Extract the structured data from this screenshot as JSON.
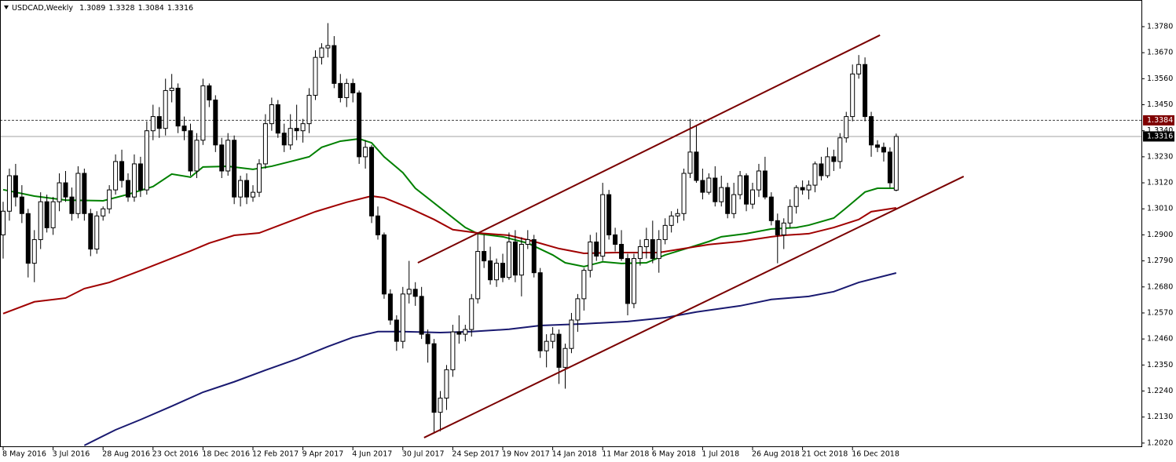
{
  "chart_data": {
    "type": "candlestick",
    "title": "USDCAD,Weekly",
    "categories": [
      "8 May 2016",
      null,
      null,
      null,
      null,
      null,
      null,
      null,
      "3 Jul 2016",
      null,
      null,
      null,
      null,
      null,
      null,
      null,
      "28 Aug 2016",
      null,
      null,
      null,
      null,
      null,
      null,
      null,
      "23 Oct 2016",
      null,
      null,
      null,
      null,
      null,
      null,
      null,
      "18 Dec 2016",
      null,
      null,
      null,
      null,
      null,
      null,
      null,
      "12 Feb 2017",
      null,
      null,
      null,
      null,
      null,
      null,
      null,
      "9 Apr 2017",
      null,
      null,
      null,
      null,
      null,
      null,
      null,
      "4 Jun 2017",
      null,
      null,
      null,
      null,
      null,
      null,
      null,
      "30 Jul 2017",
      null,
      null,
      null,
      null,
      null,
      null,
      null,
      "24 Sep 2017",
      null,
      null,
      null,
      null,
      null,
      null,
      null,
      "19 Nov 2017",
      null,
      null,
      null,
      null,
      null,
      null,
      null,
      "14 Jan 2018",
      null,
      null,
      null,
      null,
      null,
      null,
      null,
      "11 Mar 2018",
      null,
      null,
      null,
      null,
      null,
      null,
      null,
      "6 May 2018",
      null,
      null,
      null,
      null,
      null,
      null,
      null,
      "1 Jul 2018",
      null,
      null,
      null,
      null,
      null,
      null,
      null,
      "26 Aug 2018",
      null,
      null,
      null,
      null,
      null,
      null,
      null,
      "21 Oct 2018",
      null,
      null,
      null,
      null,
      null,
      null,
      null,
      "16 Dec 2018",
      null,
      null,
      null,
      null,
      null,
      null,
      null
    ],
    "open": [
      1.29,
      1.3,
      1.315,
      1.306,
      1.299,
      1.278,
      1.288,
      1.304,
      1.293,
      1.304,
      1.312,
      1.306,
      1.299,
      1.316,
      1.299,
      1.284,
      1.298,
      1.301,
      1.309,
      1.321,
      1.313,
      1.306,
      1.32,
      1.309,
      1.334,
      1.34,
      1.335,
      1.351,
      1.352,
      1.336,
      1.334,
      1.317,
      1.33,
      1.353,
      1.347,
      1.328,
      1.317,
      1.33,
      1.306,
      1.313,
      1.306,
      1.308,
      1.32,
      1.337,
      1.345,
      1.333,
      1.328,
      1.335,
      1.334,
      1.337,
      1.349,
      1.365,
      1.369,
      1.37,
      1.354,
      1.348,
      1.354,
      1.35,
      1.323,
      1.327,
      1.298,
      1.29,
      1.265,
      1.254,
      1.245,
      1.265,
      1.267,
      1.264,
      1.248,
      1.244,
      1.215,
      1.221,
      1.233,
      1.249,
      1.248,
      1.25,
      1.263,
      1.283,
      1.279,
      1.271,
      1.278,
      1.272,
      1.287,
      1.273,
      1.286,
      1.288,
      1.274,
      1.241,
      1.245,
      1.248,
      1.234,
      1.242,
      1.254,
      1.263,
      1.275,
      1.287,
      1.281,
      1.307,
      1.29,
      1.286,
      1.28,
      1.261,
      1.28,
      1.285,
      1.288,
      1.28,
      1.288,
      1.294,
      1.298,
      1.299,
      1.316,
      1.325,
      1.313,
      1.308,
      1.314,
      1.304,
      1.31,
      1.299,
      1.307,
      1.315,
      1.303,
      1.309,
      1.317,
      1.306,
      1.296,
      1.29,
      1.295,
      1.302,
      1.31,
      1.309,
      1.311,
      1.32,
      1.315,
      1.323,
      1.321,
      1.331,
      1.34,
      1.358,
      1.362,
      1.34,
      1.328,
      1.327,
      1.325,
      1.3089
    ],
    "high": [
      1.304,
      1.318,
      1.32,
      1.311,
      1.301,
      1.292,
      1.308,
      1.307,
      1.306,
      1.316,
      1.317,
      1.31,
      1.319,
      1.318,
      1.301,
      1.3,
      1.302,
      1.311,
      1.324,
      1.326,
      1.316,
      1.324,
      1.323,
      1.338,
      1.345,
      1.344,
      1.356,
      1.358,
      1.354,
      1.34,
      1.337,
      1.333,
      1.356,
      1.354,
      1.349,
      1.331,
      1.333,
      1.332,
      1.315,
      1.316,
      1.311,
      1.322,
      1.341,
      1.348,
      1.347,
      1.337,
      1.341,
      1.345,
      1.339,
      1.352,
      1.368,
      1.371,
      1.3795,
      1.374,
      1.358,
      1.356,
      1.356,
      1.351,
      1.33,
      1.328,
      1.302,
      1.291,
      1.267,
      1.256,
      1.268,
      1.279,
      1.27,
      1.268,
      1.25,
      1.246,
      1.224,
      1.235,
      1.252,
      1.256,
      1.252,
      1.265,
      1.291,
      1.29,
      1.285,
      1.28,
      1.282,
      1.291,
      1.292,
      1.289,
      1.292,
      1.29,
      1.276,
      1.248,
      1.251,
      1.25,
      1.244,
      1.257,
      1.265,
      1.276,
      1.29,
      1.291,
      1.312,
      1.309,
      1.293,
      1.292,
      1.282,
      1.282,
      1.288,
      1.293,
      1.296,
      1.292,
      1.297,
      1.3,
      1.301,
      1.318,
      1.339,
      1.336,
      1.318,
      1.316,
      1.319,
      1.315,
      1.312,
      1.312,
      1.317,
      1.316,
      1.312,
      1.32,
      1.323,
      1.308,
      1.299,
      1.297,
      1.305,
      1.311,
      1.313,
      1.313,
      1.321,
      1.323,
      1.327,
      1.326,
      1.333,
      1.342,
      1.362,
      1.366,
      1.365,
      1.342,
      1.33,
      1.329,
      1.327,
      1.3328
    ],
    "low": [
      1.28,
      1.296,
      1.302,
      1.295,
      1.272,
      1.27,
      1.284,
      1.291,
      1.29,
      1.3,
      1.304,
      1.296,
      1.297,
      1.296,
      1.281,
      1.282,
      1.296,
      1.299,
      1.307,
      1.31,
      1.304,
      1.304,
      1.306,
      1.307,
      1.33,
      1.331,
      1.332,
      1.346,
      1.333,
      1.33,
      1.315,
      1.314,
      1.328,
      1.344,
      1.325,
      1.314,
      1.315,
      1.303,
      1.302,
      1.303,
      1.304,
      1.306,
      1.318,
      1.334,
      1.331,
      1.325,
      1.326,
      1.33,
      1.329,
      1.333,
      1.347,
      1.362,
      1.365,
      1.352,
      1.346,
      1.344,
      1.346,
      1.32,
      1.318,
      1.295,
      1.288,
      1.263,
      1.252,
      1.241,
      1.242,
      1.261,
      1.26,
      1.246,
      1.236,
      1.206,
      1.207,
      1.216,
      1.23,
      1.244,
      1.245,
      1.247,
      1.261,
      1.276,
      1.269,
      1.268,
      1.27,
      1.271,
      1.27,
      1.264,
      1.284,
      1.272,
      1.238,
      1.234,
      1.242,
      1.227,
      1.225,
      1.24,
      1.249,
      1.258,
      1.272,
      1.279,
      1.279,
      1.288,
      1.283,
      1.279,
      1.256,
      1.259,
      1.277,
      1.28,
      1.278,
      1.274,
      1.286,
      1.291,
      1.295,
      1.296,
      1.314,
      1.312,
      1.305,
      1.307,
      1.302,
      1.302,
      1.297,
      1.297,
      1.305,
      1.3,
      1.301,
      1.306,
      1.305,
      1.294,
      1.278,
      1.284,
      1.293,
      1.299,
      1.307,
      1.305,
      1.308,
      1.313,
      1.314,
      1.317,
      1.318,
      1.329,
      1.338,
      1.356,
      1.338,
      1.323,
      1.325,
      1.321,
      1.31,
      1.3084
    ],
    "close": [
      1.3,
      1.315,
      1.306,
      1.299,
      1.278,
      1.288,
      1.304,
      1.293,
      1.304,
      1.312,
      1.306,
      1.299,
      1.316,
      1.299,
      1.284,
      1.298,
      1.301,
      1.309,
      1.321,
      1.313,
      1.306,
      1.32,
      1.309,
      1.334,
      1.34,
      1.335,
      1.351,
      1.352,
      1.336,
      1.334,
      1.317,
      1.33,
      1.353,
      1.347,
      1.328,
      1.317,
      1.33,
      1.306,
      1.313,
      1.306,
      1.308,
      1.32,
      1.337,
      1.345,
      1.333,
      1.328,
      1.335,
      1.334,
      1.337,
      1.349,
      1.365,
      1.369,
      1.37,
      1.354,
      1.348,
      1.354,
      1.35,
      1.323,
      1.327,
      1.298,
      1.29,
      1.265,
      1.254,
      1.245,
      1.265,
      1.267,
      1.264,
      1.248,
      1.244,
      1.215,
      1.221,
      1.233,
      1.249,
      1.248,
      1.25,
      1.263,
      1.283,
      1.279,
      1.271,
      1.278,
      1.272,
      1.287,
      1.273,
      1.286,
      1.288,
      1.274,
      1.241,
      1.245,
      1.248,
      1.234,
      1.242,
      1.254,
      1.263,
      1.275,
      1.287,
      1.281,
      1.307,
      1.29,
      1.286,
      1.28,
      1.261,
      1.28,
      1.285,
      1.288,
      1.28,
      1.288,
      1.294,
      1.298,
      1.299,
      1.316,
      1.325,
      1.313,
      1.308,
      1.314,
      1.304,
      1.31,
      1.299,
      1.307,
      1.315,
      1.303,
      1.309,
      1.317,
      1.306,
      1.296,
      1.29,
      1.295,
      1.302,
      1.31,
      1.309,
      1.311,
      1.32,
      1.315,
      1.323,
      1.321,
      1.331,
      1.34,
      1.358,
      1.362,
      1.34,
      1.328,
      1.327,
      1.325,
      1.312,
      1.3316
    ],
    "up_color": "#ffffff",
    "down_color": "#000000",
    "ylim": [
      1.2003,
      1.3886
    ],
    "yticks": [
      {
        "value": 1.202,
        "label": "1.2020"
      },
      {
        "value": 1.213,
        "label": "1.2130"
      },
      {
        "value": 1.224,
        "label": "1.2240"
      },
      {
        "value": 1.235,
        "label": "1.2350"
      },
      {
        "value": 1.246,
        "label": "1.2460"
      },
      {
        "value": 1.257,
        "label": "1.2570"
      },
      {
        "value": 1.268,
        "label": "1.2680"
      },
      {
        "value": 1.279,
        "label": "1.2790"
      },
      {
        "value": 1.29,
        "label": "1.2900"
      },
      {
        "value": 1.301,
        "label": "1.3010"
      },
      {
        "value": 1.312,
        "label": "1.3120"
      },
      {
        "value": 1.323,
        "label": "1.3230"
      },
      {
        "value": 1.334,
        "label": "1.3340"
      },
      {
        "value": 1.345,
        "label": "1.3450"
      },
      {
        "value": 1.356,
        "label": "1.3560"
      },
      {
        "value": 1.367,
        "label": "1.3670"
      },
      {
        "value": 1.378,
        "label": "1.3780"
      }
    ],
    "overlays": [
      {
        "type": "line",
        "color": "#008000",
        "x": [
          0,
          5,
          10,
          16,
          20,
          24,
          27,
          30,
          32,
          36,
          40,
          43,
          46,
          49,
          51,
          54,
          57,
          59,
          61,
          64,
          66,
          70,
          74,
          76,
          80,
          84,
          88,
          90,
          93,
          96,
          99,
          103,
          106,
          109,
          113,
          115,
          119,
          123,
          127,
          129,
          133,
          135,
          138,
          140,
          143
        ],
        "values": [
          1.3091,
          1.3064,
          1.3047,
          1.3044,
          1.3071,
          1.3104,
          1.3157,
          1.3144,
          1.3187,
          1.319,
          1.3177,
          1.319,
          1.321,
          1.323,
          1.327,
          1.3296,
          1.3306,
          1.3289,
          1.323,
          1.3163,
          1.3097,
          1.3014,
          1.2931,
          1.2905,
          1.2892,
          1.2865,
          1.2815,
          1.2782,
          1.2766,
          1.2786,
          1.2779,
          1.2782,
          1.2815,
          1.2839,
          1.2872,
          1.2892,
          1.2905,
          1.2925,
          1.2931,
          1.2941,
          1.2971,
          1.3014,
          1.3081,
          1.3097,
          1.3097
        ]
      },
      {
        "type": "line",
        "color": "#a00000",
        "x": [
          0,
          5,
          10,
          13,
          17,
          22,
          30,
          33,
          37,
          41,
          45,
          50,
          55,
          59,
          61,
          65,
          69,
          72,
          76,
          81,
          85,
          89,
          93,
          98,
          101,
          105,
          109,
          113,
          118,
          123,
          125,
          129,
          133,
          137,
          139,
          143
        ],
        "values": [
          1.2567,
          1.2617,
          1.2633,
          1.2673,
          1.2699,
          1.2749,
          1.2832,
          1.2865,
          1.2898,
          1.2908,
          1.2948,
          1.2998,
          1.3038,
          1.3064,
          1.3057,
          1.3014,
          1.2965,
          1.2922,
          1.2908,
          1.2898,
          1.2872,
          1.2842,
          1.2822,
          1.2825,
          1.2825,
          1.2825,
          1.2842,
          1.2859,
          1.2872,
          1.2892,
          1.2898,
          1.2905,
          1.2931,
          1.2965,
          1.2998,
          1.3014
        ]
      },
      {
        "type": "line",
        "color": "#191970",
        "x": [
          13,
          18,
          22,
          27,
          32,
          37,
          42,
          47,
          52,
          56,
          60,
          64,
          70,
          75,
          81,
          86,
          93,
          100,
          106,
          111,
          118,
          123,
          129,
          133,
          137,
          143
        ],
        "values": [
          1.201,
          1.2076,
          1.2119,
          1.2176,
          1.2235,
          1.2279,
          1.2328,
          1.2375,
          1.2428,
          1.2467,
          1.2491,
          1.2491,
          1.2487,
          1.2491,
          1.2501,
          1.2517,
          1.2524,
          1.2534,
          1.255,
          1.2574,
          1.26,
          1.2627,
          1.264,
          1.266,
          1.2699,
          1.2739
        ]
      }
    ],
    "trendlines": [
      {
        "color": "#7a0000",
        "x": [
          66.4,
          140.4
        ],
        "values": [
          1.2782,
          1.3744
        ]
      },
      {
        "color": "#7a0000",
        "x": [
          67.4,
          153.8
        ],
        "values": [
          1.2043,
          1.3147
        ]
      }
    ],
    "hlines": [
      {
        "value": 1.3384,
        "style": "dashed",
        "color": "#404040",
        "label_background": "#7f0000"
      },
      {
        "value": 1.3316,
        "style": "solid",
        "color": "#a0a0a0",
        "label_background": "#000000"
      }
    ]
  }
}
